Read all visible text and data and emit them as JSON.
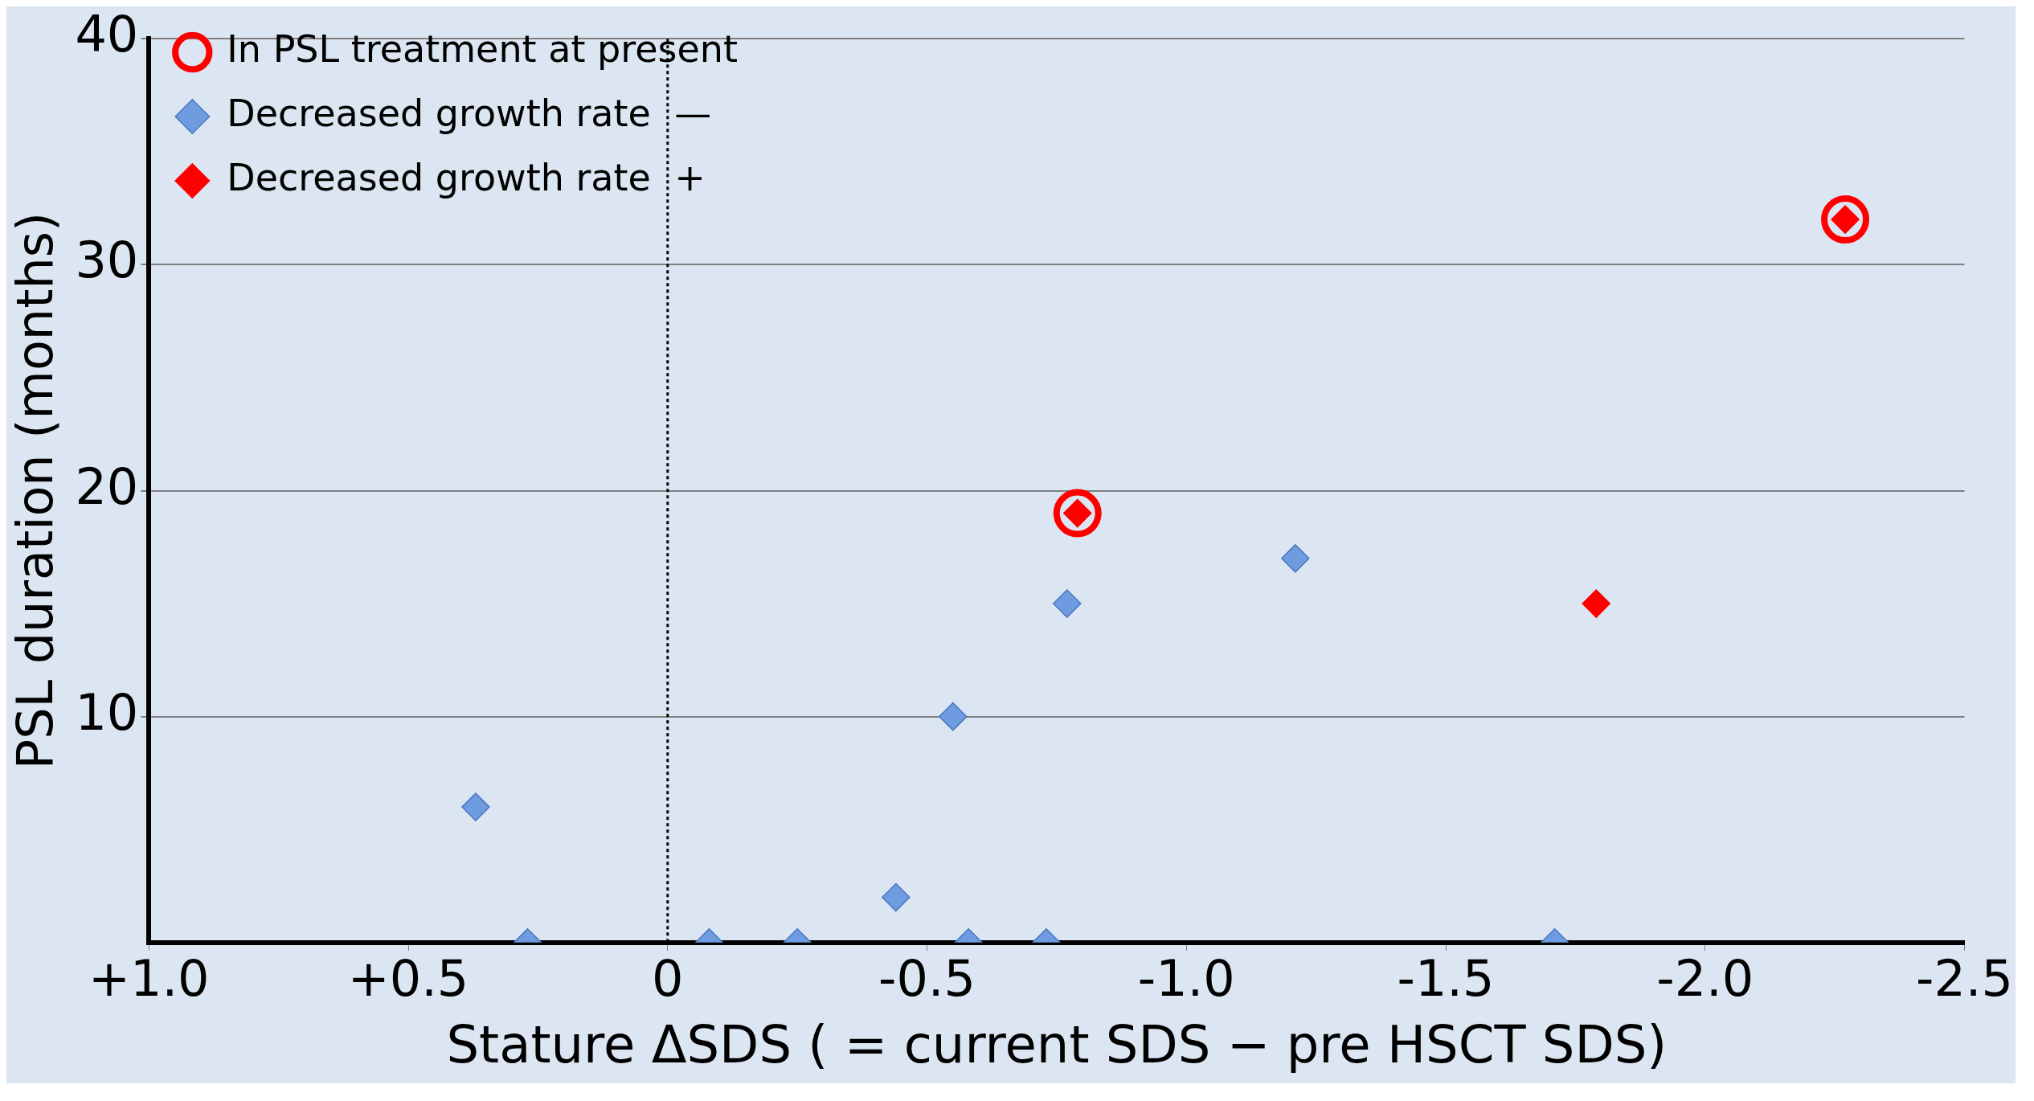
{
  "chart_data": {
    "type": "scatter",
    "xlabel": "Stature ΔSDS ( = current SDS − pre HSCT SDS)",
    "ylabel": "PSL duration (months)",
    "xlim": [
      1.0,
      -2.5
    ],
    "xticks": [
      {
        "value": 1.0,
        "label": "+1.0"
      },
      {
        "value": 0.5,
        "label": "+0.5"
      },
      {
        "value": 0,
        "label": "0"
      },
      {
        "value": -0.5,
        "label": "-0.5"
      },
      {
        "value": -1.0,
        "label": "-1.0"
      },
      {
        "value": -1.5,
        "label": "-1.5"
      },
      {
        "value": -2.0,
        "label": "-2.0"
      },
      {
        "value": -2.5,
        "label": "-2.5"
      }
    ],
    "ylim": [
      0,
      40
    ],
    "yticks": [
      10,
      20,
      30,
      40
    ],
    "grid": "y",
    "legend": "top left",
    "ref_lines": [
      {
        "axis": "x",
        "value": 0,
        "color": "#000000",
        "line_style": "dotted"
      }
    ],
    "series": [
      {
        "name": "Decreased growth rate  —",
        "color": "#6f9be0",
        "marker": "diamond",
        "x": [
          0.37,
          0.27,
          -0.08,
          -0.25,
          -0.58,
          -0.73,
          -1.71,
          -0.44,
          -0.55,
          -0.77,
          -1.21
        ],
        "values": [
          6,
          0,
          0,
          0,
          0,
          0,
          0,
          2,
          10,
          15,
          17
        ]
      },
      {
        "name": "Decreased growth rate  +",
        "color": "#ff0000",
        "marker": "diamond",
        "x": [
          -0.79,
          -1.79,
          -2.27
        ],
        "values": [
          19,
          15,
          32
        ]
      },
      {
        "name": "In PSL treatment at present",
        "color": "#ff0000",
        "marker": "circle",
        "x": [
          -0.79,
          -2.27
        ],
        "values": [
          19,
          32
        ]
      }
    ]
  }
}
